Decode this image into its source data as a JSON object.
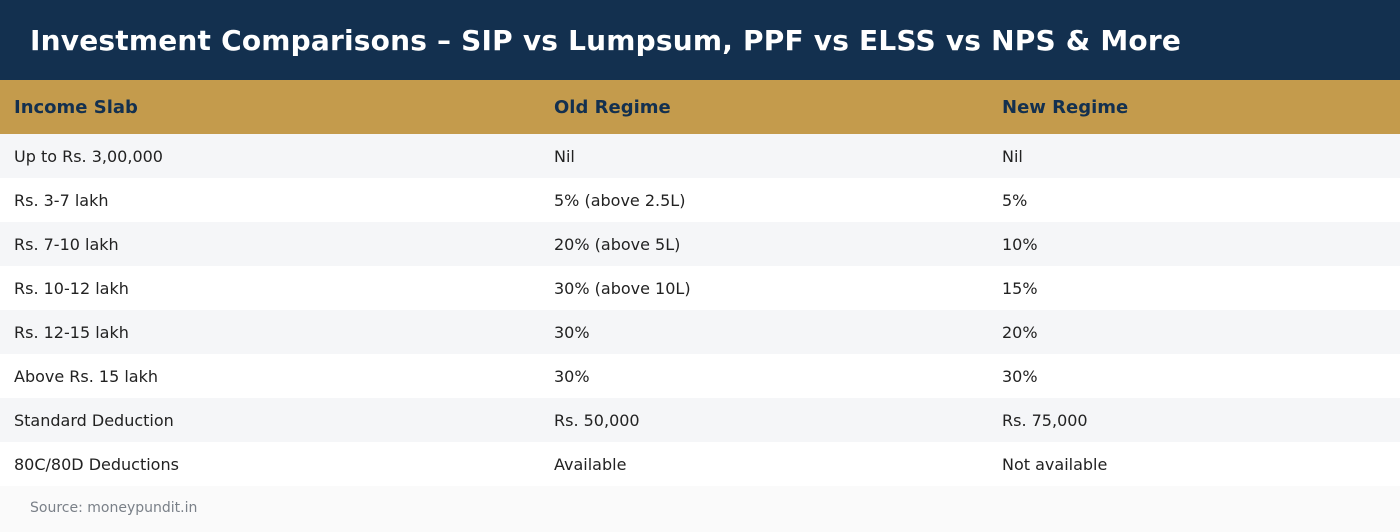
{
  "header": {
    "title": "Investment Comparisons – SIP vs Lumpsum, PPF vs ELSS vs NPS & More"
  },
  "table": {
    "columns": [
      "Income Slab",
      "Old Regime",
      "New Regime"
    ],
    "rows": [
      [
        "Up to Rs. 3,00,000",
        "Nil",
        "Nil"
      ],
      [
        "Rs. 3-7 lakh",
        "5% (above 2.5L)",
        "5%"
      ],
      [
        "Rs. 7-10 lakh",
        "20% (above 5L)",
        "10%"
      ],
      [
        "Rs. 10-12 lakh",
        "30% (above 10L)",
        "15%"
      ],
      [
        "Rs. 12-15 lakh",
        "30%",
        "20%"
      ],
      [
        "Above Rs. 15 lakh",
        "30%",
        "30%"
      ],
      [
        "Standard Deduction",
        "Rs. 50,000",
        "Rs. 75,000"
      ],
      [
        "80C/80D Deductions",
        "Available",
        "Not available"
      ]
    ]
  },
  "footer": {
    "source": "Source: moneypundit.in"
  },
  "colors": {
    "header_bg": "#13304f",
    "table_header_bg": "#c49b4c",
    "row_alt_bg": "#f5f6f8"
  }
}
